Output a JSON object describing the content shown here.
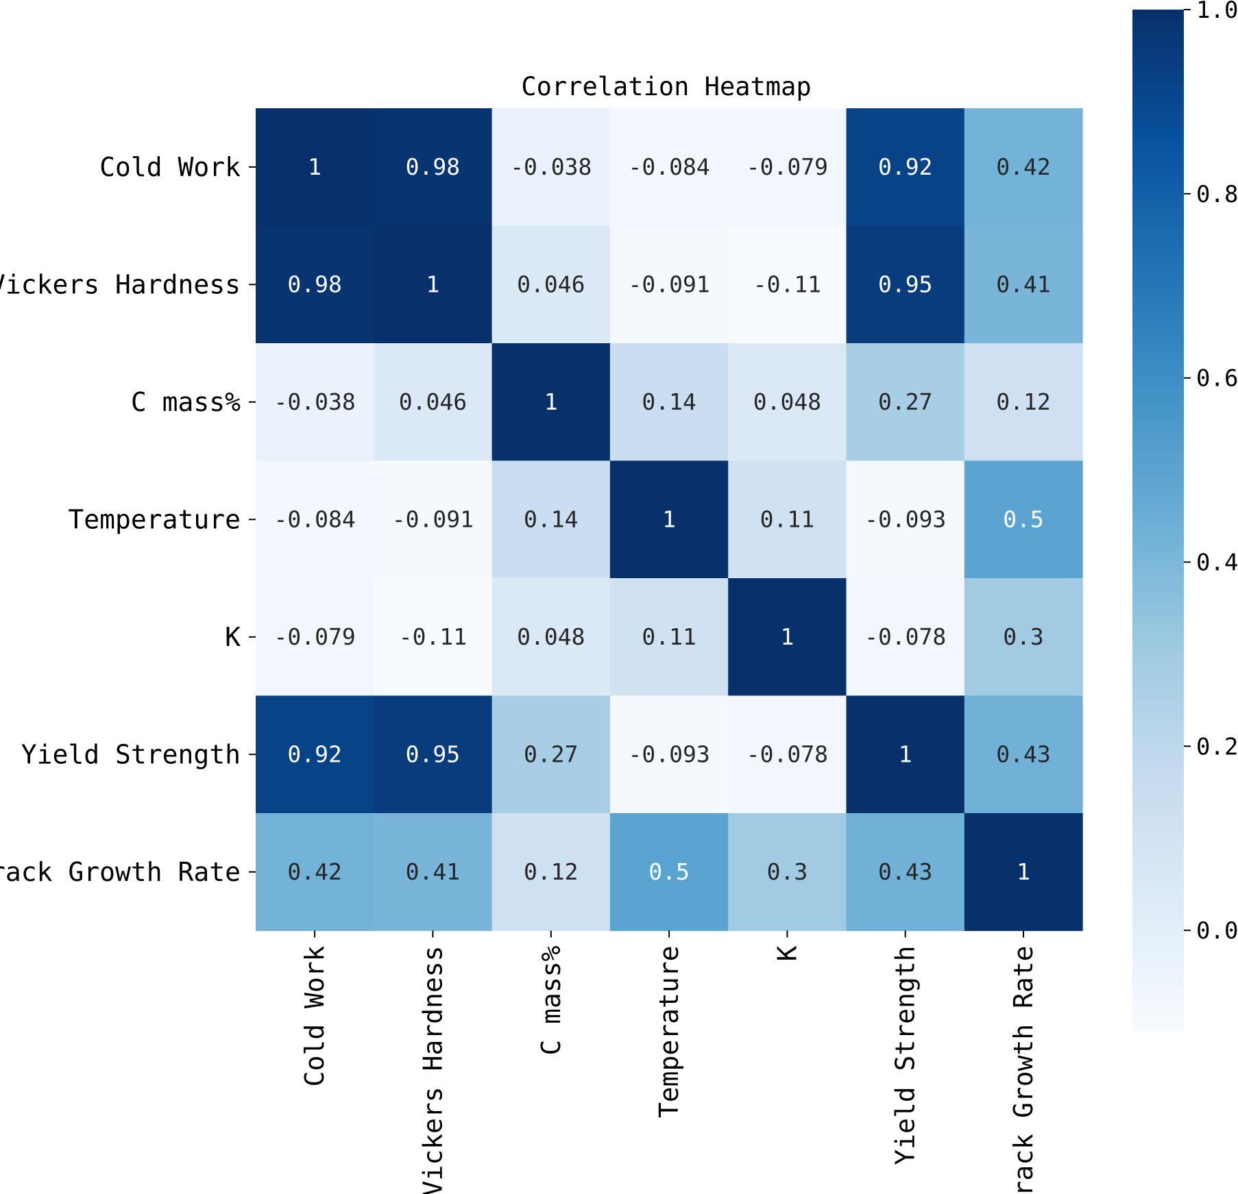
{
  "chart_data": {
    "type": "heatmap",
    "title": "Correlation Heatmap",
    "row_labels": [
      "Cold Work",
      "Vickers Hardness",
      "C mass%",
      "Temperature",
      "K",
      "Yield Strength",
      "Crack Growth Rate"
    ],
    "col_labels": [
      "Cold Work",
      "Vickers Hardness",
      "C mass%",
      "Temperature",
      "K",
      "Yield Strength",
      "Crack Growth Rate"
    ],
    "values": [
      [
        1,
        0.98,
        -0.038,
        -0.084,
        -0.079,
        0.92,
        0.42
      ],
      [
        0.98,
        1,
        0.046,
        -0.091,
        -0.11,
        0.95,
        0.41
      ],
      [
        -0.038,
        0.046,
        1,
        0.14,
        0.048,
        0.27,
        0.12
      ],
      [
        -0.084,
        -0.091,
        0.14,
        1,
        0.11,
        -0.093,
        0.5
      ],
      [
        -0.079,
        -0.11,
        0.048,
        0.11,
        1,
        -0.078,
        0.3
      ],
      [
        0.92,
        0.95,
        0.27,
        -0.093,
        -0.078,
        1,
        0.43
      ],
      [
        0.42,
        0.41,
        0.12,
        0.5,
        0.3,
        0.43,
        1
      ]
    ],
    "value_labels": [
      [
        "1",
        "0.98",
        "-0.038",
        "-0.084",
        "-0.079",
        "0.92",
        "0.42"
      ],
      [
        "0.98",
        "1",
        "0.046",
        "-0.091",
        "-0.11",
        "0.95",
        "0.41"
      ],
      [
        "-0.038",
        "0.046",
        "1",
        "0.14",
        "0.048",
        "0.27",
        "0.12"
      ],
      [
        "-0.084",
        "-0.091",
        "0.14",
        "1",
        "0.11",
        "-0.093",
        "0.5"
      ],
      [
        "-0.079",
        "-0.11",
        "0.048",
        "0.11",
        "1",
        "-0.078",
        "0.3"
      ],
      [
        "0.92",
        "0.95",
        "0.27",
        "-0.093",
        "-0.078",
        "1",
        "0.43"
      ],
      [
        "0.42",
        "0.41",
        "0.12",
        "0.5",
        "0.3",
        "0.43",
        "1"
      ]
    ],
    "colorbar": {
      "range": [
        -0.11,
        1.0
      ],
      "ticks": [
        1.0,
        0.8,
        0.6,
        0.4,
        0.2,
        0.0
      ],
      "tick_labels": [
        "1.0",
        "0.8",
        "0.6",
        "0.4",
        "0.2",
        "0.0"
      ],
      "colormap": "Blues",
      "colors": [
        "#f7fbff",
        "#deebf7",
        "#c6dbef",
        "#9ecae1",
        "#6baed6",
        "#4292c6",
        "#2171b5",
        "#08519c",
        "#08306b"
      ]
    },
    "grid": false,
    "legend": "right"
  }
}
